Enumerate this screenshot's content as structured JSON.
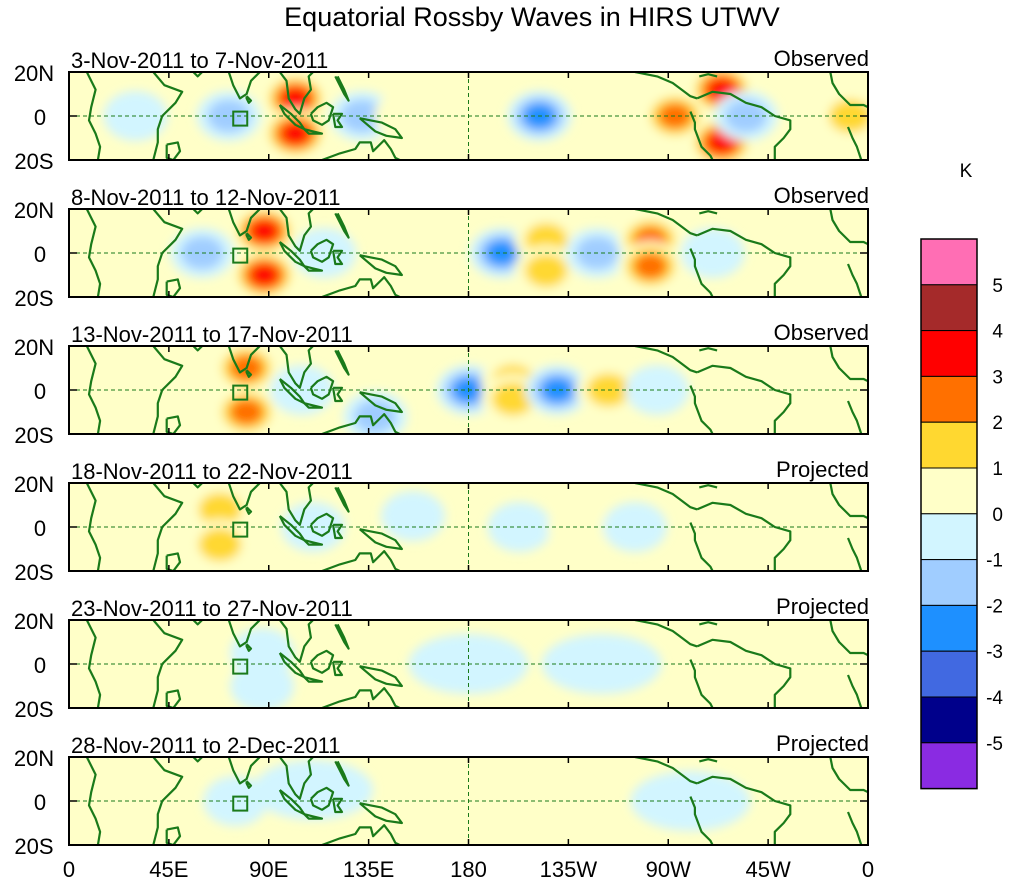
{
  "chart_data": {
    "type": "heatmap",
    "title": "Equatorial Rossby Waves in HIRS UTWV",
    "unit_label": "K",
    "xticks": [
      "0",
      "45E",
      "90E",
      "135E",
      "180",
      "135W",
      "90W",
      "45W",
      "0"
    ],
    "yticks": [
      "20N",
      "0",
      "20S"
    ],
    "xlim": [
      0,
      360
    ],
    "ylim": [
      -20,
      20
    ],
    "reference_lines": {
      "equator": 0,
      "dateline": 180
    },
    "colorbar": {
      "levels": [
        "5",
        "4",
        "3",
        "2",
        "1",
        "0",
        "-1",
        "-2",
        "-3",
        "-4",
        "-5"
      ],
      "colors": [
        "#ff6eb4",
        "#a52a2a",
        "#ff0000",
        "#ff7000",
        "#ffd830",
        "#ffffc8",
        "#d2f5ff",
        "#a0cdff",
        "#1e90ff",
        "#4169e1",
        "#00008b",
        "#8a2be2"
      ]
    },
    "panels": [
      {
        "period": "3-Nov-2011 to 7-Nov-2011",
        "status": "Observed",
        "anomalies": [
          {
            "lon": 102,
            "lat": 8,
            "value": 4
          },
          {
            "lon": 102,
            "lat": -8,
            "value": 4
          },
          {
            "lon": 72,
            "lat": 0,
            "value": -2
          },
          {
            "lon": 132,
            "lat": 0,
            "value": -2
          },
          {
            "lon": 152,
            "lat": 0,
            "value": 1
          },
          {
            "lon": 212,
            "lat": 0,
            "value": -3
          },
          {
            "lon": 250,
            "lat": 9,
            "value": 1
          },
          {
            "lon": 250,
            "lat": -9,
            "value": 1
          },
          {
            "lon": 273,
            "lat": 0,
            "value": 3
          },
          {
            "lon": 294,
            "lat": 12,
            "value": 4
          },
          {
            "lon": 294,
            "lat": -12,
            "value": 4
          },
          {
            "lon": 305,
            "lat": 0,
            "value": -2
          },
          {
            "lon": 30,
            "lat": 0,
            "value": -1
          },
          {
            "lon": 352,
            "lat": 0,
            "value": 2
          }
        ]
      },
      {
        "period": "8-Nov-2011 to 12-Nov-2011",
        "status": "Observed",
        "anomalies": [
          {
            "lon": 88,
            "lat": 10,
            "value": 4
          },
          {
            "lon": 88,
            "lat": -10,
            "value": 4
          },
          {
            "lon": 60,
            "lat": 0,
            "value": -2
          },
          {
            "lon": 115,
            "lat": 0,
            "value": -1
          },
          {
            "lon": 195,
            "lat": 0,
            "value": -3
          },
          {
            "lon": 215,
            "lat": 6,
            "value": 2
          },
          {
            "lon": 215,
            "lat": -8,
            "value": 2
          },
          {
            "lon": 238,
            "lat": 0,
            "value": -2
          },
          {
            "lon": 262,
            "lat": 6,
            "value": 3
          },
          {
            "lon": 262,
            "lat": -6,
            "value": 3
          },
          {
            "lon": 290,
            "lat": 0,
            "value": -1
          },
          {
            "lon": 337,
            "lat": 0,
            "value": 1
          }
        ]
      },
      {
        "period": "13-Nov-2011 to 17-Nov-2011",
        "status": "Observed",
        "anomalies": [
          {
            "lon": 80,
            "lat": 10,
            "value": 3
          },
          {
            "lon": 80,
            "lat": -10,
            "value": 3
          },
          {
            "lon": 105,
            "lat": 0,
            "value": -1
          },
          {
            "lon": 180,
            "lat": 0,
            "value": -3
          },
          {
            "lon": 200,
            "lat": 4,
            "value": 2
          },
          {
            "lon": 200,
            "lat": -4,
            "value": 2
          },
          {
            "lon": 220,
            "lat": 0,
            "value": -3
          },
          {
            "lon": 243,
            "lat": 0,
            "value": 2
          },
          {
            "lon": 265,
            "lat": 0,
            "value": -1
          },
          {
            "lon": 138,
            "lat": -12,
            "value": -2
          }
        ]
      },
      {
        "period": "18-Nov-2011 to 22-Nov-2011",
        "status": "Projected",
        "anomalies": [
          {
            "lon": 68,
            "lat": 8,
            "value": 2
          },
          {
            "lon": 68,
            "lat": -8,
            "value": 2
          },
          {
            "lon": 110,
            "lat": 0,
            "value": -1
          },
          {
            "lon": 155,
            "lat": 5,
            "value": -1
          },
          {
            "lon": 203,
            "lat": 0,
            "value": -1
          },
          {
            "lon": 230,
            "lat": 0,
            "value": 1
          },
          {
            "lon": 255,
            "lat": 0,
            "value": -1
          }
        ]
      },
      {
        "period": "23-Nov-2011 to 27-Nov-2011",
        "status": "Projected",
        "anomalies": [
          {
            "lon": 58,
            "lat": 0,
            "value": 1
          },
          {
            "lon": 87,
            "lat": 5,
            "value": -1
          },
          {
            "lon": 87,
            "lat": -10,
            "value": -1
          },
          {
            "lon": 180,
            "lat": 0,
            "value": 0
          },
          {
            "lon": 240,
            "lat": 0,
            "value": 0
          }
        ]
      },
      {
        "period": "28-Nov-2011 to 2-Dec-2011",
        "status": "Projected",
        "anomalies": [
          {
            "lon": 75,
            "lat": 0,
            "value": -1
          },
          {
            "lon": 110,
            "lat": 5,
            "value": 0
          },
          {
            "lon": 222,
            "lat": 0,
            "value": 1
          },
          {
            "lon": 280,
            "lat": 0,
            "value": 0
          }
        ]
      }
    ]
  }
}
